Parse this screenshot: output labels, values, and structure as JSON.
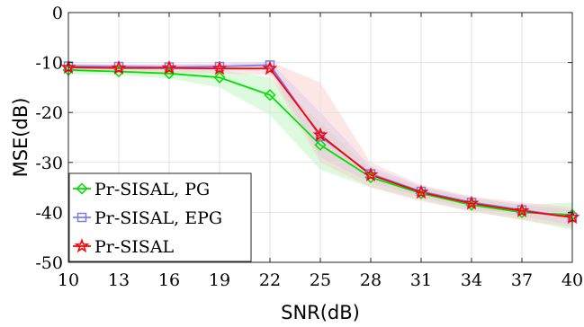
{
  "chart_data": {
    "type": "line",
    "xlabel": "SNR(dB)",
    "ylabel": "MSE(dB)",
    "xlim": [
      10,
      40
    ],
    "ylim": [
      -50,
      0
    ],
    "xticks": [
      10,
      13,
      16,
      19,
      22,
      25,
      28,
      31,
      34,
      37,
      40
    ],
    "yticks": [
      0,
      -10,
      -20,
      -30,
      -40,
      -50
    ],
    "x": [
      10,
      13,
      16,
      19,
      22,
      25,
      28,
      31,
      34,
      37,
      40
    ],
    "grid": true,
    "legend_position": "lower-left",
    "series": [
      {
        "name": "Pr-SISAL, PG",
        "color": "#00e000",
        "marker": "diamond",
        "values": [
          -11.5,
          -11.8,
          -12.2,
          -13.0,
          -16.5,
          -26.5,
          -33.0,
          -36.2,
          -38.5,
          -40.0,
          -40.5
        ],
        "band_low": [
          -12.3,
          -12.6,
          -13.2,
          -15.0,
          -20.5,
          -31.5,
          -35.0,
          -37.5,
          -39.8,
          -41.5,
          -43.5
        ],
        "band_high": [
          -10.8,
          -11.0,
          -11.3,
          -11.5,
          -13.0,
          -22.0,
          -31.5,
          -35.0,
          -37.2,
          -38.5,
          -38.0
        ],
        "band_color": "#b6f5b6"
      },
      {
        "name": "Pr-SISAL, EPG",
        "color": "#7b7bf0",
        "marker": "square",
        "values": [
          -10.7,
          -10.8,
          -10.9,
          -10.8,
          -10.5,
          -24.8,
          -32.3,
          -35.8,
          -38.0,
          -39.5,
          -41.0
        ],
        "band_low": [
          -11.3,
          -11.4,
          -11.5,
          -11.5,
          -11.5,
          -29.0,
          -34.0,
          -37.0,
          -39.2,
          -40.8,
          -42.5
        ],
        "band_high": [
          -10.2,
          -10.3,
          -10.3,
          -10.2,
          -9.8,
          -20.0,
          -30.8,
          -34.8,
          -37.0,
          -38.5,
          -39.5
        ],
        "band_color": "#c6c6f5"
      },
      {
        "name": "Pr-SISAL",
        "color": "#ff0000",
        "marker": "star",
        "values": [
          -11.0,
          -11.1,
          -11.1,
          -11.2,
          -11.2,
          -24.5,
          -32.5,
          -36.0,
          -38.2,
          -39.7,
          -41.0
        ],
        "band_low": [
          -11.8,
          -11.9,
          -12.0,
          -12.2,
          -12.5,
          -30.0,
          -35.0,
          -37.8,
          -39.8,
          -41.5,
          -43.0
        ],
        "band_high": [
          -10.3,
          -10.4,
          -10.4,
          -10.3,
          -9.8,
          -14.0,
          -30.0,
          -34.5,
          -36.8,
          -38.0,
          -39.0
        ],
        "band_color": "#f8c8c8"
      }
    ]
  }
}
